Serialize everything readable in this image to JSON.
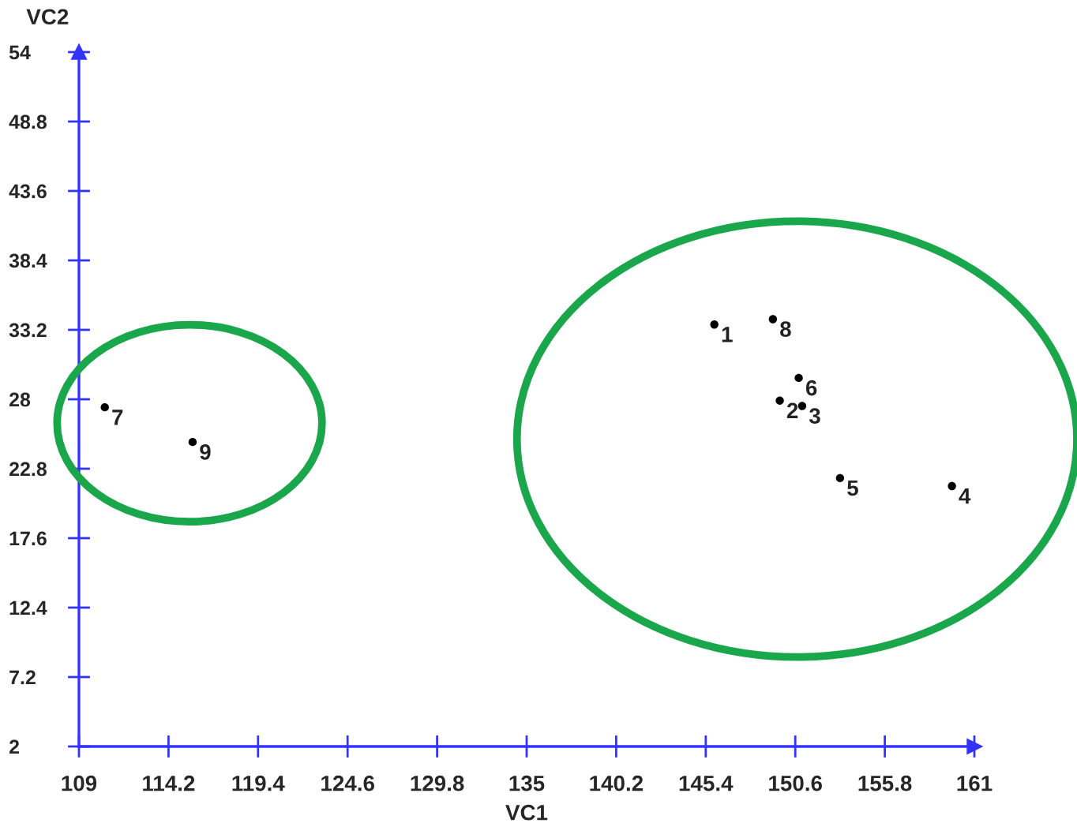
{
  "chart_data": {
    "type": "scatter",
    "xlabel": "VC1",
    "ylabel": "VC2",
    "x": [
      145.9,
      149.7,
      151.0,
      159.7,
      153.2,
      150.8,
      110.5,
      149.3,
      115.6
    ],
    "series": [
      {
        "color": "#000000",
        "values": [
          33.6,
          27.9,
          27.5,
          21.5,
          22.1,
          29.6,
          27.4,
          34.0,
          24.8
        ]
      }
    ],
    "annotations": [
      {
        "text": "1",
        "x": 145.9,
        "y": 33.6
      },
      {
        "text": "2",
        "x": 149.7,
        "y": 27.9
      },
      {
        "text": "3",
        "x": 151.0,
        "y": 27.5
      },
      {
        "text": "4",
        "x": 159.7,
        "y": 21.5
      },
      {
        "text": "5",
        "x": 153.2,
        "y": 22.1
      },
      {
        "text": "6",
        "x": 150.8,
        "y": 29.6
      },
      {
        "text": "7",
        "x": 110.5,
        "y": 27.4
      },
      {
        "text": "8",
        "x": 149.3,
        "y": 34.0
      },
      {
        "text": "9",
        "x": 115.6,
        "y": 24.8
      }
    ],
    "xlim": [
      109,
      161
    ],
    "ylim": [
      2,
      54
    ],
    "xticks": [
      109,
      114.2,
      119.4,
      124.6,
      129.8,
      135,
      140.2,
      145.4,
      150.6,
      155.8,
      161
    ],
    "yticks": [
      2,
      7.2,
      12.4,
      17.6,
      22.8,
      28,
      33.2,
      38.4,
      43.6,
      48.8,
      54
    ],
    "marker": "circle",
    "grid": false,
    "legend": false
  }
}
